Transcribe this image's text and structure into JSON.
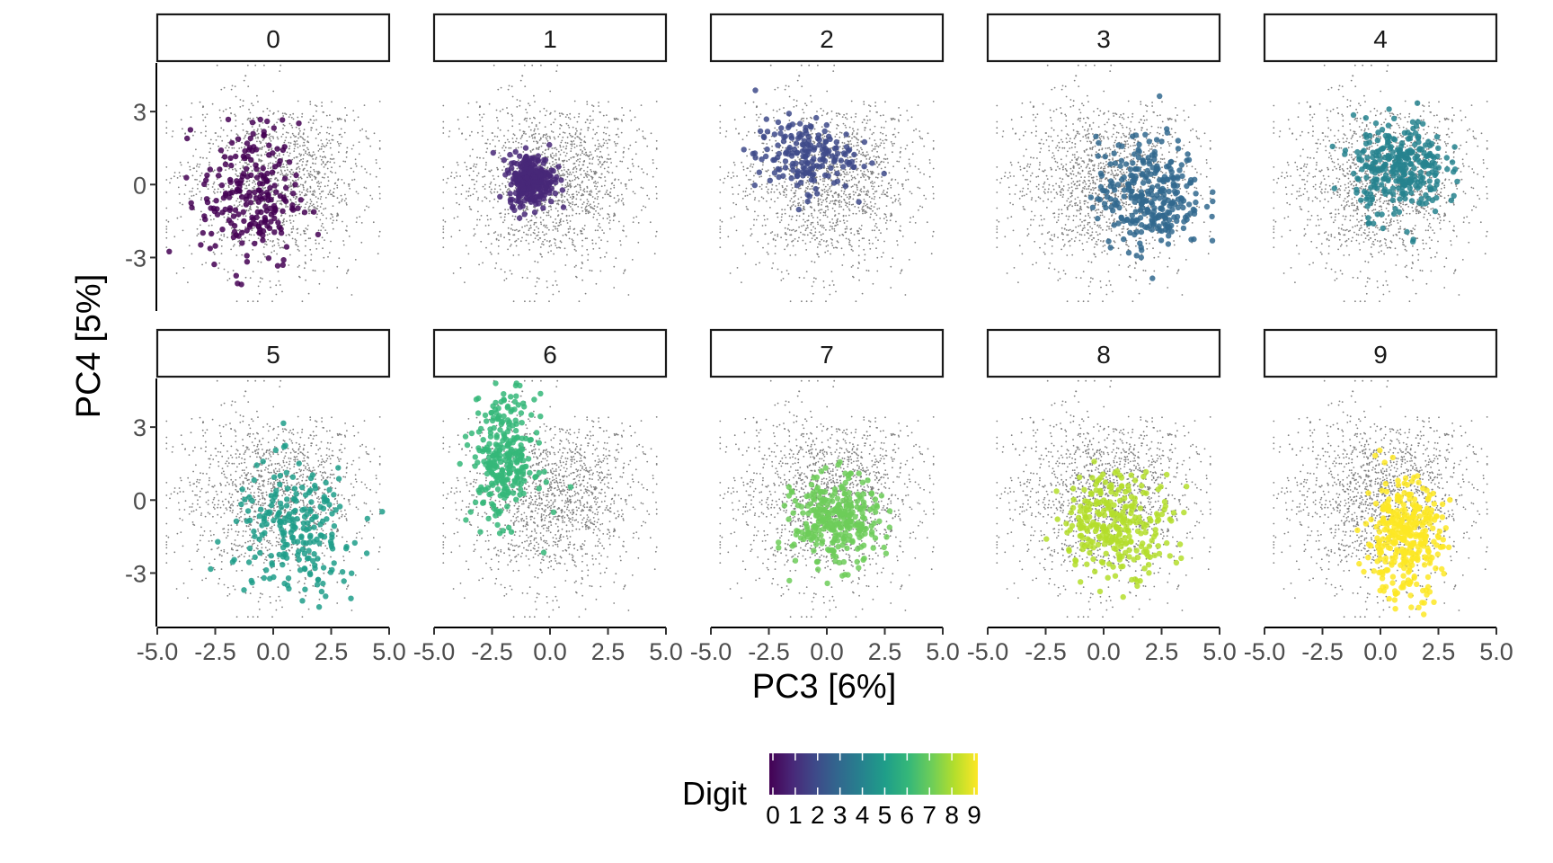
{
  "chart_data": {
    "type": "scatter",
    "facet_by": "digit",
    "panels": [
      "0",
      "1",
      "2",
      "3",
      "4",
      "5",
      "6",
      "7",
      "8",
      "9"
    ],
    "xlabel": "PC3 [6%]",
    "ylabel": "PC4 [5%]",
    "xlim": [
      -5,
      5
    ],
    "ylim": [
      -5.2,
      5
    ],
    "x_ticks": [
      -5.0,
      -2.5,
      0.0,
      2.5,
      5.0
    ],
    "x_tick_labels": [
      "-5.0",
      "-2.5",
      "0.0",
      "2.5",
      "5.0"
    ],
    "y_ticks": [
      -3,
      0,
      3
    ],
    "y_tick_labels": [
      "-3",
      "0",
      "3"
    ],
    "grid": false,
    "background_points": {
      "color": "#7f7f7f",
      "description": "all digits, shown in grey in every panel"
    },
    "series": [
      {
        "digit": "0",
        "color": "#440154",
        "center": [
          -1.0,
          -0.5
        ],
        "spread": [
          1.4,
          2.0
        ],
        "count": 220
      },
      {
        "digit": "1",
        "color": "#482878",
        "center": [
          -0.8,
          0.2
        ],
        "spread": [
          0.65,
          0.7
        ],
        "count": 300
      },
      {
        "digit": "2",
        "color": "#3E4A89",
        "center": [
          -1.0,
          1.2
        ],
        "spread": [
          1.4,
          1.0
        ],
        "count": 180
      },
      {
        "digit": "3",
        "color": "#31688E",
        "center": [
          2.0,
          -0.4
        ],
        "spread": [
          1.5,
          1.5
        ],
        "count": 300
      },
      {
        "digit": "4",
        "color": "#26828E",
        "center": [
          0.8,
          0.7
        ],
        "spread": [
          1.3,
          1.3
        ],
        "count": 300
      },
      {
        "digit": "5",
        "color": "#1F9E89",
        "center": [
          1.0,
          -1.3
        ],
        "spread": [
          1.8,
          1.8
        ],
        "count": 220
      },
      {
        "digit": "6",
        "color": "#35B779",
        "center": [
          -2.0,
          1.7
        ],
        "spread": [
          0.9,
          1.7
        ],
        "count": 280
      },
      {
        "digit": "7",
        "color": "#6DCD59",
        "center": [
          0.4,
          -0.9
        ],
        "spread": [
          1.2,
          1.2
        ],
        "count": 300
      },
      {
        "digit": "8",
        "color": "#B4DE2C",
        "center": [
          0.6,
          -0.9
        ],
        "spread": [
          1.6,
          1.4
        ],
        "count": 280
      },
      {
        "digit": "9",
        "color": "#FDE725",
        "center": [
          1.0,
          -1.6
        ],
        "spread": [
          1.1,
          1.6
        ],
        "count": 340
      }
    ],
    "legend": {
      "title": "Digit",
      "type": "colorbar",
      "position": "bottom",
      "labels": [
        "0",
        "1",
        "2",
        "3",
        "4",
        "5",
        "6",
        "7",
        "8",
        "9"
      ],
      "colors": [
        "#440154",
        "#482878",
        "#3E4A89",
        "#31688E",
        "#26828E",
        "#1F9E89",
        "#35B779",
        "#6DCD59",
        "#B4DE2C",
        "#FDE725"
      ]
    }
  }
}
